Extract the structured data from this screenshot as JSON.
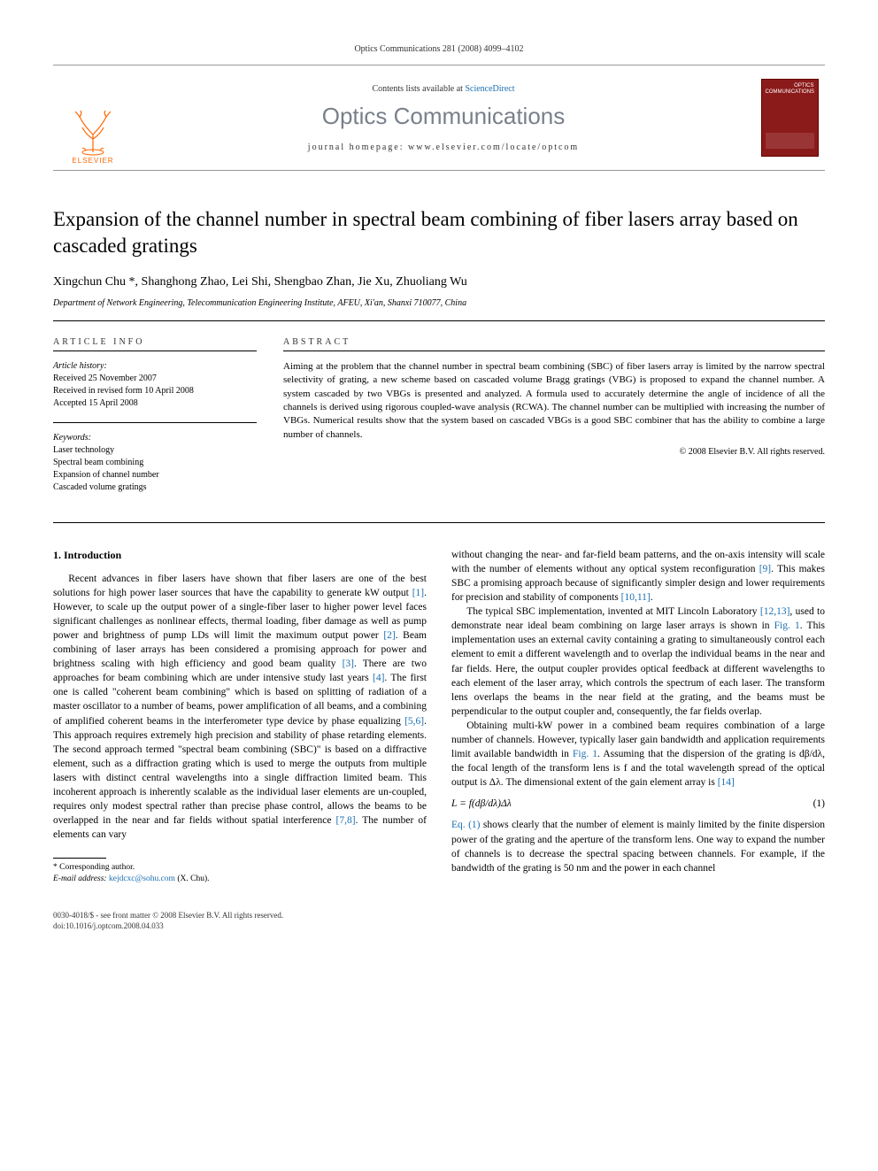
{
  "running_head": "Optics Communications 281 (2008) 4099–4102",
  "banner": {
    "contents_prefix": "Contents lists available at ",
    "contents_link": "ScienceDirect",
    "journal": "Optics Communications",
    "homepage": "journal homepage: www.elsevier.com/locate/optcom",
    "publisher": "ELSEVIER",
    "cover_label": "OPTICS COMMUNICATIONS"
  },
  "title": "Expansion of the channel number in spectral beam combining of fiber lasers array based on cascaded gratings",
  "authors": "Xingchun Chu *, Shanghong Zhao, Lei Shi, Shengbao Zhan, Jie Xu, Zhuoliang Wu",
  "affiliation": "Department of Network Engineering, Telecommunication Engineering Institute, AFEU, Xi'an, Shanxi 710077, China",
  "info": {
    "label": "ARTICLE INFO",
    "history_head": "Article history:",
    "history": [
      "Received 25 November 2007",
      "Received in revised form 10 April 2008",
      "Accepted 15 April 2008"
    ],
    "keywords_head": "Keywords:",
    "keywords": [
      "Laser technology",
      "Spectral beam combining",
      "Expansion of channel number",
      "Cascaded volume gratings"
    ]
  },
  "abstract": {
    "label": "ABSTRACT",
    "text": "Aiming at the problem that the channel number in spectral beam combining (SBC) of fiber lasers array is limited by the narrow spectral selectivity of grating, a new scheme based on cascaded volume Bragg gratings (VBG) is proposed to expand the channel number. A system cascaded by two VBGs is presented and analyzed. A formula used to accurately determine the angle of incidence of all the channels is derived using rigorous coupled-wave analysis (RCWA). The channel number can be multiplied with increasing the number of VBGs. Numerical results show that the system based on cascaded VBGs is a good SBC combiner that has the ability to combine a large number of channels.",
    "copyright": "© 2008 Elsevier B.V. All rights reserved."
  },
  "section1_head": "1. Introduction",
  "para1": "Recent advances in fiber lasers have shown that fiber lasers are one of the best solutions for high power laser sources that have the capability to generate kW output [1]. However, to scale up the output power of a single-fiber laser to higher power level faces significant challenges as nonlinear effects, thermal loading, fiber damage as well as pump power and brightness of pump LDs will limit the maximum output power [2]. Beam combining of laser arrays has been considered a promising approach for power and brightness scaling with high efficiency and good beam quality [3]. There are two approaches for beam combining which are under intensive study last years [4]. The first one is called \"coherent beam combining\" which is based on splitting of radiation of a master oscillator to a number of beams, power amplification of all beams, and a combining of amplified coherent beams in the interferometer type device by phase equalizing [5,6]. This approach requires extremely high precision and stability of phase retarding elements. The second approach termed \"spectral beam combining (SBC)\" is based on a diffractive element, such as a diffraction grating which is used to merge the outputs from multiple lasers with distinct central wavelengths into a single diffraction limited beam. This incoherent approach is inherently scalable as the individual laser elements are un-coupled, requires only modest spectral rather than precise phase control, allows the beams to be overlapped in the near and far fields without spatial interference [7,8]. The number of elements can vary",
  "para2": "without changing the near- and far-field beam patterns, and the on-axis intensity will scale with the number of elements without any optical system reconfiguration [9]. This makes SBC a promising approach because of significantly simpler design and lower requirements for precision and stability of components [10,11].",
  "para3": "The typical SBC implementation, invented at MIT Lincoln Laboratory [12,13], used to demonstrate near ideal beam combining on large laser arrays is shown in Fig. 1. This implementation uses an external cavity containing a grating to simultaneously control each element to emit a different wavelength and to overlap the individual beams in the near and far fields. Here, the output coupler provides optical feedback at different wavelengths to each element of the laser array, which controls the spectrum of each laser. The transform lens overlaps the beams in the near field at the grating, and the beams must be perpendicular to the output coupler and, consequently, the far fields overlap.",
  "para4a": "Obtaining multi-kW power in a combined beam requires combination of a large number of channels. However, typically laser gain bandwidth and application requirements limit available bandwidth in Fig. 1. Assuming that the dispersion of the grating is dβ/dλ, the focal length of the transform lens is f and the total wavelength spread of the optical output is Δλ. The dimensional extent of the gain element array is [14]",
  "equation": "L = f(dβ/dλ)Δλ",
  "eq_num": "(1)",
  "para4b": "Eq. (1) shows clearly that the number of element is mainly limited by the finite dispersion power of the grating and the aperture of the transform lens. One way to expand the number of channels is to decrease the spectral spacing between channels. For example, if the bandwidth of the grating is 50 nm and the power in each channel",
  "footnote": {
    "corr": "* Corresponding author.",
    "email_label": "E-mail address: ",
    "email": "kejdcxc@sohu.com",
    "email_paren": " (X. Chu)."
  },
  "footer": {
    "line1": "0030-4018/$ - see front matter © 2008 Elsevier B.V. All rights reserved.",
    "line2": "doi:10.1016/j.optcom.2008.04.033"
  },
  "colors": {
    "link": "#1a6fb0",
    "elsevier_orange": "#ff6600",
    "journal_grey": "#79808a",
    "cover_bg": "#8b1a1a"
  }
}
